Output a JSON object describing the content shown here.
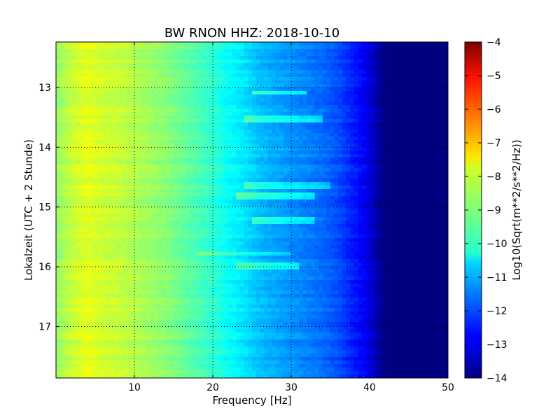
{
  "chart_data": {
    "type": "heatmap",
    "title": "BW RNON HHZ: 2018-10-10",
    "xlabel": "Frequency [Hz]",
    "ylabel": "Lokalzeit (UTC + 2 Stunde)",
    "xlim": [
      0,
      50
    ],
    "ylim": [
      12.24,
      17.86
    ],
    "y_inverted": true,
    "x_ticks": [
      10,
      20,
      30,
      40,
      50
    ],
    "y_ticks": [
      13,
      14,
      15,
      16,
      17
    ],
    "grid": true,
    "colormap": "jet",
    "colorbar": {
      "label": "Log10(Sqrt(m**2/s**2/Hz))",
      "range": [
        -14,
        -4
      ],
      "ticks": [
        -4,
        -5,
        -6,
        -7,
        -8,
        -9,
        -10,
        -11,
        -12,
        -13,
        -14
      ]
    },
    "frequency_profile": {
      "freq": [
        0,
        2,
        4,
        6,
        8,
        10,
        12,
        14,
        16,
        18,
        20,
        22,
        24,
        26,
        28,
        30,
        32,
        34,
        36,
        38,
        40,
        41,
        42,
        44,
        46,
        48,
        50
      ],
      "value": [
        -8.8,
        -8.3,
        -8.0,
        -8.2,
        -8.3,
        -8.5,
        -8.7,
        -8.9,
        -9.2,
        -9.5,
        -9.8,
        -10.2,
        -10.5,
        -10.9,
        -11.1,
        -11.3,
        -11.5,
        -11.7,
        -12.0,
        -12.5,
        -13.0,
        -13.6,
        -14.0,
        -14.0,
        -14.0,
        -14.0,
        -14.0
      ]
    },
    "bright_streaks": [
      {
        "time": 13.09,
        "freq_range": [
          25,
          32
        ],
        "delta": 1.2
      },
      {
        "time": 13.55,
        "freq_range": [
          24,
          34
        ],
        "delta": 1.0
      },
      {
        "time": 14.64,
        "freq_range": [
          24,
          35
        ],
        "delta": 0.9
      },
      {
        "time": 14.82,
        "freq_range": [
          23,
          33
        ],
        "delta": 1.1
      },
      {
        "time": 15.22,
        "freq_range": [
          25,
          33
        ],
        "delta": 1.0
      },
      {
        "time": 15.78,
        "freq_range": [
          18,
          30
        ],
        "delta": 0.7
      },
      {
        "time": 16.01,
        "freq_range": [
          23,
          31
        ],
        "delta": 0.9
      }
    ]
  }
}
